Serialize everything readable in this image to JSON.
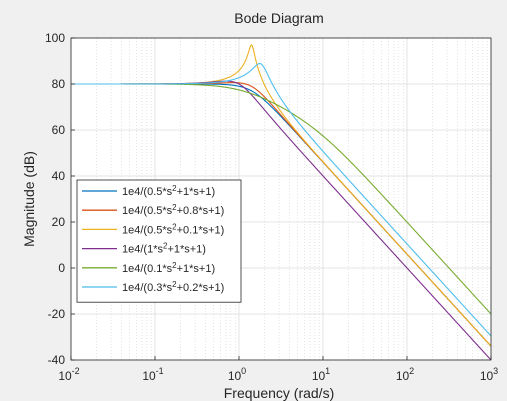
{
  "chart_data": {
    "type": "line",
    "title": "Bode Diagram",
    "xlabel": "Frequency  (rad/s)",
    "ylabel": "Magnitude (dB)",
    "xscale": "log",
    "xlim": [
      0.01,
      1000
    ],
    "ylim": [
      -40,
      100
    ],
    "x_ticks": [
      {
        "base": "10",
        "exp": "-2"
      },
      {
        "base": "10",
        "exp": "-1"
      },
      {
        "base": "10",
        "exp": "0"
      },
      {
        "base": "10",
        "exp": "1"
      },
      {
        "base": "10",
        "exp": "2"
      },
      {
        "base": "10",
        "exp": "3"
      }
    ],
    "y_ticks": [
      100,
      80,
      60,
      40,
      20,
      0,
      -20,
      -40
    ],
    "grid": true,
    "legend_position": "bottom-left",
    "series": [
      {
        "name_prefix": "1e4/(0.5*s",
        "name_sup": "2",
        "name_suffix": "+1*s+1)",
        "a": 0.5,
        "b": 1.0,
        "color": "#0072bd"
      },
      {
        "name_prefix": "1e4/(0.5*s",
        "name_sup": "2",
        "name_suffix": "+0.8*s+1)",
        "a": 0.5,
        "b": 0.8,
        "color": "#d95319"
      },
      {
        "name_prefix": "1e4/(0.5*s",
        "name_sup": "2",
        "name_suffix": "+0.1*s+1)",
        "a": 0.5,
        "b": 0.1,
        "color": "#edb120"
      },
      {
        "name_prefix": "1e4/(1*s",
        "name_sup": "2",
        "name_suffix": "+1*s+1)",
        "a": 1.0,
        "b": 1.0,
        "color": "#7e2f8e"
      },
      {
        "name_prefix": "1e4/(0.1*s",
        "name_sup": "2",
        "name_suffix": "+1*s+1)",
        "a": 0.1,
        "b": 1.0,
        "color": "#77ac30"
      },
      {
        "name_prefix": "1e4/(0.3*s",
        "name_sup": "2",
        "name_suffix": "+0.2*s+1)",
        "a": 0.3,
        "b": 0.2,
        "color": "#4dbeee"
      }
    ]
  }
}
